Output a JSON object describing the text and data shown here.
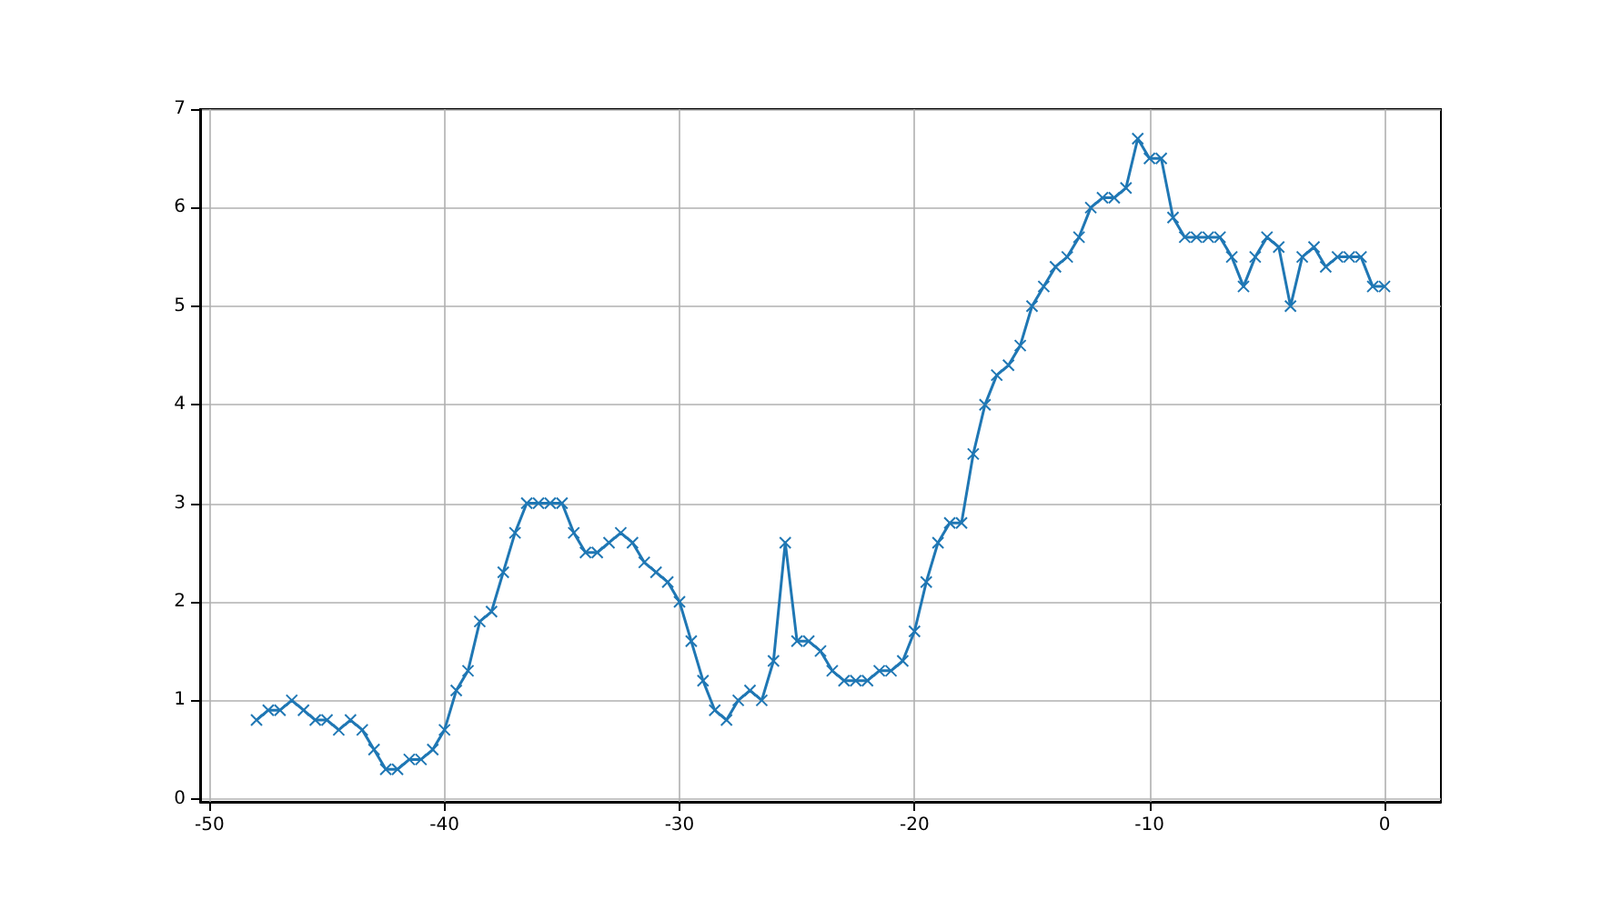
{
  "chart_data": {
    "type": "line",
    "x": [
      -48,
      -47.5,
      -47,
      -46.5,
      -46,
      -45.5,
      -45,
      -44.5,
      -44,
      -43.5,
      -43,
      -42.5,
      -42,
      -41.5,
      -41,
      -40.5,
      -40,
      -39.5,
      -39,
      -38.5,
      -38,
      -37.5,
      -37,
      -36.5,
      -36,
      -35.5,
      -35,
      -34.5,
      -34,
      -33.5,
      -33,
      -32.5,
      -32,
      -31.5,
      -31,
      -30.5,
      -30,
      -29.5,
      -29,
      -28.5,
      -28,
      -27.5,
      -27,
      -26.5,
      -26,
      -25.5,
      -25,
      -24.5,
      -24,
      -23.5,
      -23,
      -22.5,
      -22,
      -21.5,
      -21,
      -20.5,
      -20,
      -19.5,
      -19,
      -18.5,
      -18,
      -17.5,
      -17,
      -16.5,
      -16,
      -15.5,
      -15,
      -14.5,
      -14,
      -13.5,
      -13,
      -12.5,
      -12,
      -11.5,
      -11,
      -10.5,
      -10,
      -9.5,
      -9,
      -8.5,
      -8,
      -7.5,
      -7,
      -6.5,
      -6,
      -5.5,
      -5,
      -4.5,
      -4,
      -3.5,
      -3,
      -2.5,
      -2,
      -1.5,
      -1,
      -0.5,
      0
    ],
    "series": [
      {
        "color": "#1f77b4",
        "values": [
          0.8,
          0.9,
          0.9,
          1.0,
          0.9,
          0.8,
          0.8,
          0.7,
          0.8,
          0.7,
          0.5,
          0.3,
          0.3,
          0.4,
          0.4,
          0.5,
          0.7,
          1.1,
          1.3,
          1.8,
          1.9,
          2.3,
          2.7,
          3.0,
          3.0,
          3.0,
          3.0,
          2.7,
          2.5,
          2.5,
          2.6,
          2.7,
          2.6,
          2.4,
          2.3,
          2.2,
          2.0,
          1.6,
          1.2,
          0.9,
          0.8,
          1.0,
          1.1,
          1.0,
          1.4,
          2.6,
          1.6,
          1.6,
          1.5,
          1.3,
          1.2,
          1.2,
          1.2,
          1.3,
          1.3,
          1.4,
          1.7,
          2.2,
          2.6,
          2.8,
          2.8,
          3.5,
          4.0,
          4.3,
          4.4,
          4.6,
          5.0,
          5.2,
          5.4,
          5.5,
          5.7,
          6.0,
          6.1,
          6.1,
          6.2,
          6.7,
          6.5,
          6.5,
          5.9,
          5.7,
          5.7,
          5.7,
          5.7,
          5.5,
          5.2,
          5.5,
          5.7,
          5.6,
          5.0,
          5.5,
          5.6,
          5.4,
          5.5,
          5.5,
          5.5,
          5.2,
          5.2
        ]
      }
    ],
    "xlim": [
      -50.4,
      2.4
    ],
    "xticks": [
      -50,
      -40,
      -30,
      -20,
      -10,
      0
    ],
    "ylim": [
      -0.03,
      7
    ],
    "yticks": [
      0,
      1,
      2,
      3,
      4,
      5,
      6,
      7
    ],
    "grid": true,
    "marker": "cross",
    "line_style": "solid"
  }
}
